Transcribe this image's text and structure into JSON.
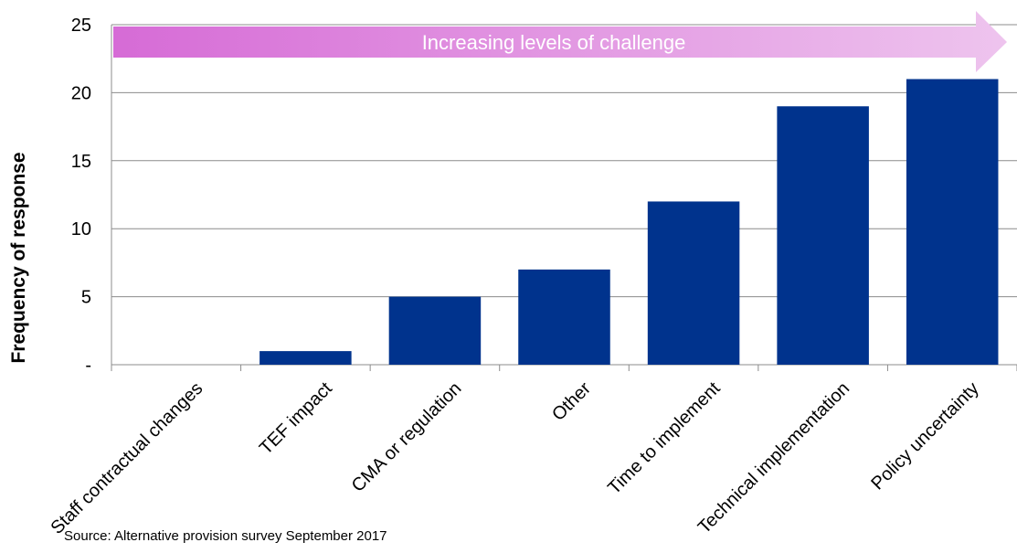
{
  "chart_data": {
    "type": "bar",
    "categories": [
      "Staff contractual changes",
      "TEF impact",
      "CMA or regulation",
      "Other",
      "Time to implement",
      "Technical implementation",
      "Policy uncertainty"
    ],
    "values": [
      0,
      1,
      5,
      7,
      12,
      19,
      21
    ],
    "ylabel": "Frequency of response",
    "xlabel": "",
    "ylim": [
      0,
      25
    ],
    "yticks": [
      0,
      5,
      10,
      15,
      20,
      25
    ],
    "ytick_labels": [
      "-",
      "5",
      "10",
      "15",
      "20",
      "25"
    ],
    "grid": true,
    "annotation": "Increasing levels of challenge",
    "bar_color": "#00338D",
    "arrow_color_start": "#D66BD6",
    "arrow_color_end": "#EEC4EE",
    "source": "Source: Alternative provision survey September 2017"
  }
}
